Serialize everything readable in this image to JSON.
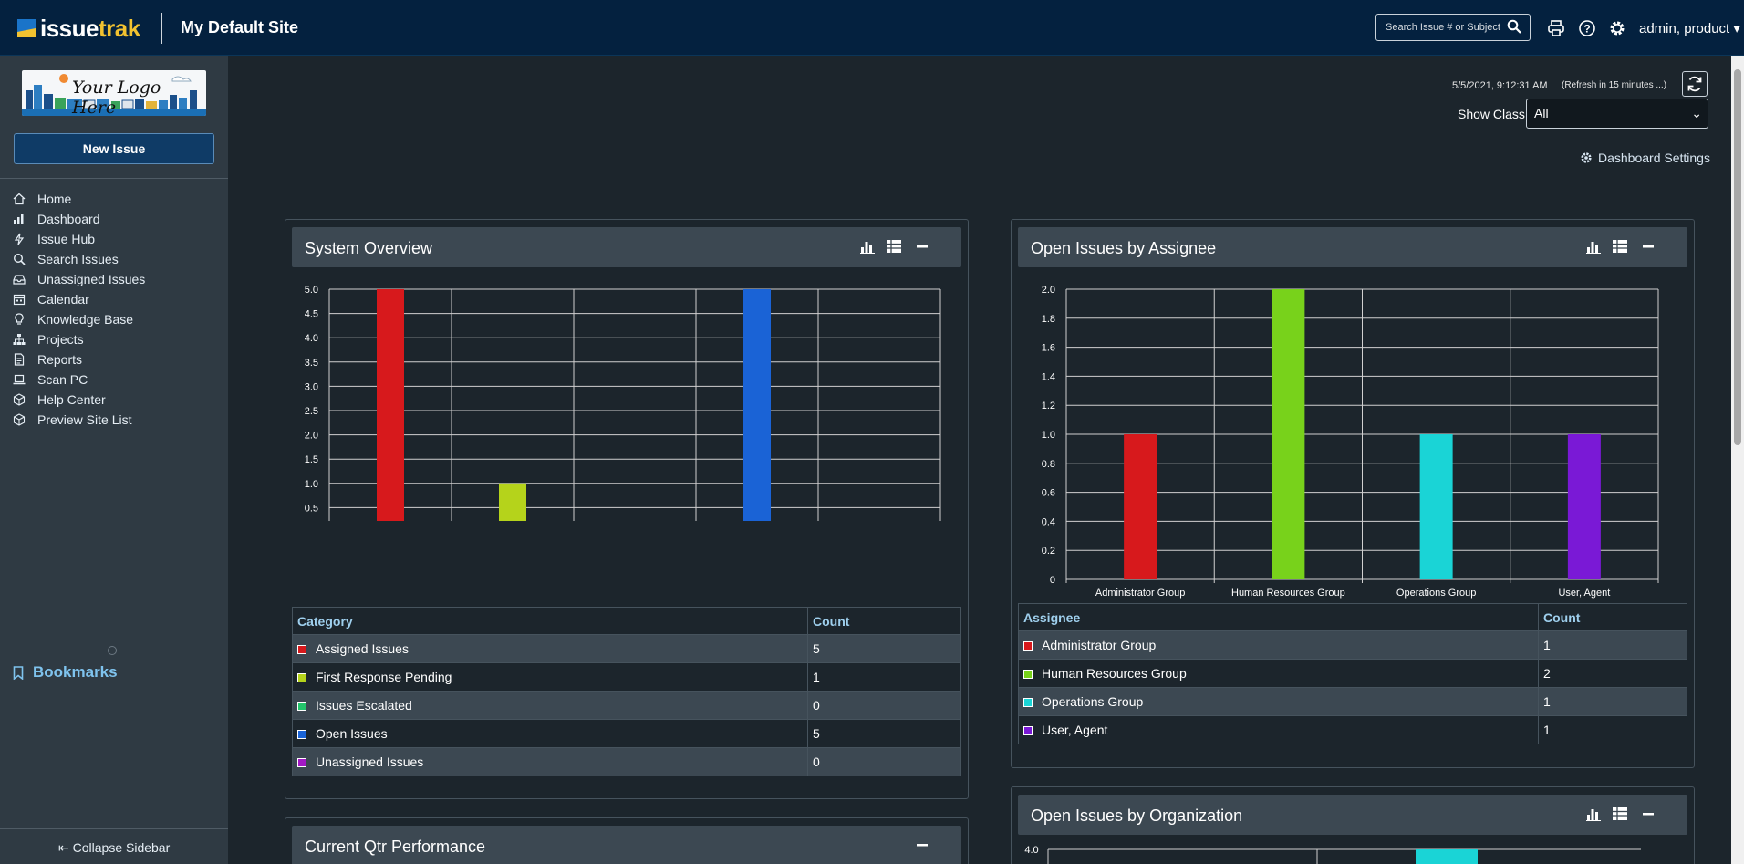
{
  "app": {
    "brand_primary": "issue",
    "brand_secondary": "trak",
    "site_title": "My Default Site",
    "search_placeholder": "Search Issue # or Subject",
    "user_label": "admin, product ▾"
  },
  "sidebar": {
    "logo_text": "Your Logo Here",
    "new_issue": "New Issue",
    "items": [
      {
        "label": "Home",
        "icon": "home-icon"
      },
      {
        "label": "Dashboard",
        "icon": "dashboard-icon"
      },
      {
        "label": "Issue Hub",
        "icon": "bolt-icon"
      },
      {
        "label": "Search Issues",
        "icon": "search-icon"
      },
      {
        "label": "Unassigned Issues",
        "icon": "inbox-icon"
      },
      {
        "label": "Calendar",
        "icon": "calendar-icon"
      },
      {
        "label": "Knowledge Base",
        "icon": "lightbulb-icon"
      },
      {
        "label": "Projects",
        "icon": "sitemap-icon"
      },
      {
        "label": "Reports",
        "icon": "report-icon"
      },
      {
        "label": "Scan PC",
        "icon": "laptop-icon"
      },
      {
        "label": "Help Center",
        "icon": "cube-icon"
      },
      {
        "label": "Preview Site List",
        "icon": "cube-icon"
      }
    ],
    "bookmarks": "Bookmarks",
    "collapse": "Collapse Sidebar"
  },
  "header": {
    "timestamp": "5/5/2021, 9:12:31 AM",
    "refresh_note": "(Refresh in 15 minutes ...)",
    "show_class_label": "Show Class:",
    "show_class_value": "All",
    "dashboard_settings": "Dashboard Settings"
  },
  "panels": {
    "system_overview": {
      "title": "System Overview",
      "col_category": "Category",
      "col_count": "Count",
      "rows": [
        {
          "label": "Assigned Issues",
          "count": "5",
          "color": "#d7191c"
        },
        {
          "label": "First Response Pending",
          "count": "1",
          "color": "#b5d31b"
        },
        {
          "label": "Issues Escalated",
          "count": "0",
          "color": "#23c46b"
        },
        {
          "label": "Open Issues",
          "count": "5",
          "color": "#1a63d6"
        },
        {
          "label": "Unassigned Issues",
          "count": "0",
          "color": "#a218c4"
        }
      ]
    },
    "open_by_assignee": {
      "title": "Open Issues by Assignee",
      "col_assignee": "Assignee",
      "col_count": "Count",
      "rows": [
        {
          "label": "Administrator Group",
          "count": "1",
          "color": "#d7191c"
        },
        {
          "label": "Human Resources Group",
          "count": "2",
          "color": "#78d21b"
        },
        {
          "label": "Operations Group",
          "count": "1",
          "color": "#1ad4d6"
        },
        {
          "label": "User, Agent",
          "count": "1",
          "color": "#7a19d6"
        }
      ]
    },
    "current_qtr": {
      "title": "Current Qtr Performance"
    },
    "open_by_org": {
      "title": "Open Issues by Organization"
    }
  },
  "chart_data": [
    {
      "type": "bar",
      "title": "System Overview",
      "categories": [
        "Assigned Issues",
        "First Response Pending",
        "Issues Escalated",
        "Open Issues",
        "Unassigned Issues"
      ],
      "values": [
        5,
        1,
        0,
        5,
        0
      ],
      "colors": [
        "#d7191c",
        "#b5d31b",
        "#23c46b",
        "#1a63d6",
        "#a218c4"
      ],
      "ylim": [
        0,
        5
      ],
      "yticks": [
        "0",
        "0.5",
        "1.0",
        "1.5",
        "2.0",
        "2.5",
        "3.0",
        "3.5",
        "4.0",
        "4.5",
        "5.0"
      ],
      "grid": true
    },
    {
      "type": "bar",
      "title": "Open Issues by Assignee",
      "categories": [
        "Administrator Group",
        "Human Resources Group",
        "Operations Group",
        "User, Agent"
      ],
      "values": [
        1,
        2,
        1,
        1
      ],
      "colors": [
        "#d7191c",
        "#78d21b",
        "#1ad4d6",
        "#7a19d6"
      ],
      "ylim": [
        0,
        2
      ],
      "yticks": [
        "0",
        "0.2",
        "0.4",
        "0.6",
        "0.8",
        "1.0",
        "1.2",
        "1.4",
        "1.6",
        "1.8",
        "2.0"
      ],
      "grid": true
    },
    {
      "type": "bar",
      "title": "Open Issues by Organization",
      "yticks": [
        "4.0"
      ]
    }
  ]
}
